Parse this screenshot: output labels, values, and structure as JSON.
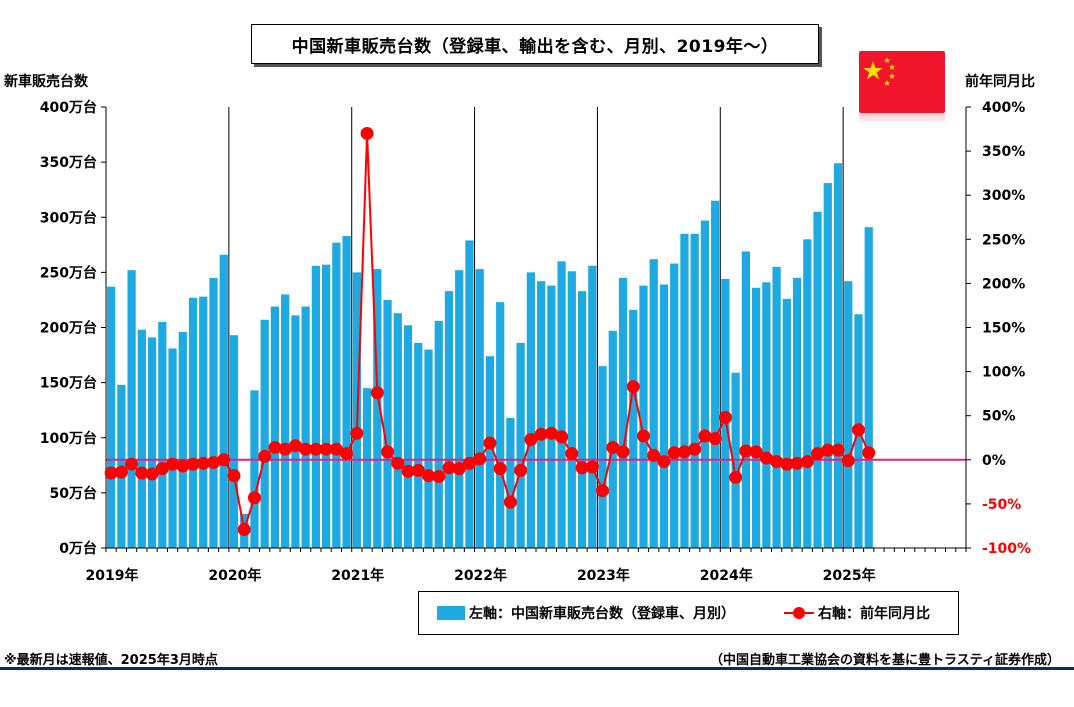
{
  "title": "中国新車販売台数（登録車、輸出を含む、月別、2019年～）",
  "left_axis_title": "新車販売台数",
  "right_axis_title": "前年同月比",
  "footnote_left": "※最新月は速報値、2025年3月時点",
  "footnote_right": "（中国自動車工業協会の資料を基に豊トラスティ証券作成）",
  "flag_icon": "china-flag-icon",
  "colors": {
    "bar": "#1fa9e1",
    "line": "#ff0000",
    "zero_line": "#e0218a",
    "rule": "#0a2a6b"
  },
  "legend": {
    "bar_label": "左軸：中国新車販売台数（登録車、月別）",
    "line_label": "右軸：前年同月比"
  },
  "chart_data": {
    "type": "bar+line",
    "x_labels": [
      "2019年",
      "2020年",
      "2021年",
      "2022年",
      "2023年",
      "2024年",
      "2025年"
    ],
    "months_total": 84,
    "left_axis": {
      "ylim": [
        0,
        400
      ],
      "ticks": [
        0,
        50,
        100,
        150,
        200,
        250,
        300,
        350,
        400
      ],
      "tick_labels": [
        "0万台",
        "50万台",
        "100万台",
        "150万台",
        "200万台",
        "250万台",
        "300万台",
        "350万台",
        "400万台"
      ]
    },
    "right_axis": {
      "ylim": [
        -100,
        400
      ],
      "ticks": [
        -100,
        -50,
        0,
        50,
        100,
        150,
        200,
        250,
        300,
        350,
        400
      ],
      "tick_labels": [
        "-100%",
        "-50%",
        "0%",
        "50%",
        "100%",
        "150%",
        "200%",
        "250%",
        "300%",
        "350%",
        "400%"
      ]
    },
    "series": [
      {
        "name": "左軸：中国新車販売台数（登録車、月別）",
        "axis": "left",
        "kind": "bar",
        "values": [
          237,
          148,
          252,
          198,
          191,
          205,
          181,
          196,
          227,
          228,
          245,
          266,
          193,
          31,
          143,
          207,
          219,
          230,
          211,
          219,
          256,
          257,
          277,
          283,
          250,
          145,
          253,
          225,
          213,
          202,
          186,
          180,
          206,
          233,
          252,
          279,
          253,
          174,
          223,
          118,
          186,
          250,
          242,
          238,
          260,
          251,
          233,
          256,
          165,
          197,
          245,
          216,
          238,
          262,
          239,
          258,
          285,
          285,
          297,
          315,
          244,
          159,
          269,
          236,
          241,
          255,
          226,
          245,
          280,
          305,
          331,
          349,
          242,
          212,
          291
        ]
      },
      {
        "name": "右軸：前年同月比",
        "axis": "right",
        "kind": "line",
        "values": [
          -15,
          -14,
          -5,
          -15,
          -16,
          -10,
          -5,
          -7,
          -5,
          -4,
          -3,
          0,
          -18,
          -79,
          -43,
          4,
          14,
          12,
          16,
          12,
          12,
          12,
          12,
          7,
          30,
          370,
          76,
          9,
          -4,
          -13,
          -12,
          -18,
          -19,
          -9,
          -10,
          -4,
          1,
          19,
          -10,
          -48,
          -12,
          23,
          29,
          30,
          26,
          7,
          -9,
          -8,
          -35,
          14,
          9,
          83,
          27,
          5,
          -2,
          8,
          9,
          12,
          27,
          24,
          48,
          -20,
          10,
          9,
          2,
          -2,
          -5,
          -4,
          -2,
          7,
          11,
          11,
          -1,
          34,
          8
        ]
      }
    ]
  }
}
